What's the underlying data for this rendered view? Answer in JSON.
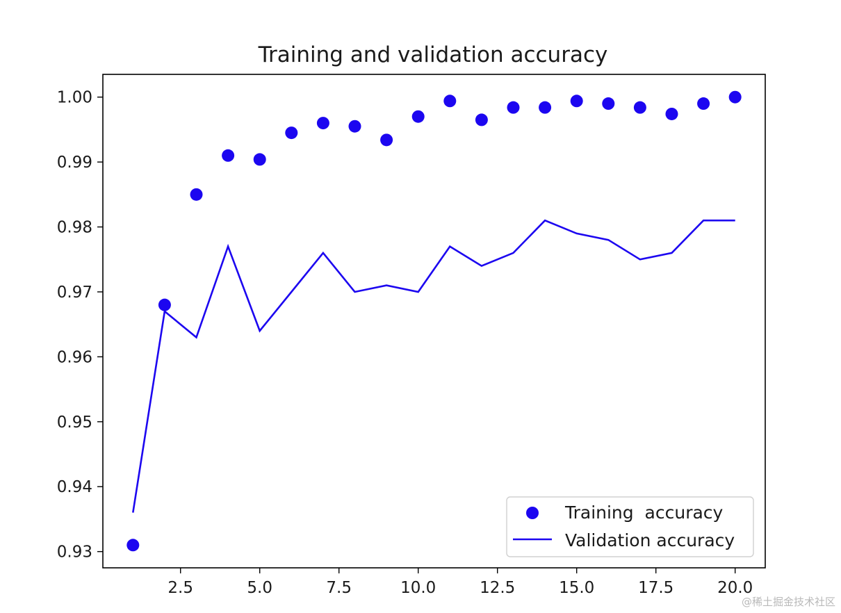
{
  "chart_data": {
    "type": "scatter",
    "title": "Training and validation accuracy",
    "xlabel": "",
    "ylabel": "",
    "xlim": [
      0.05,
      20.95
    ],
    "ylim": [
      0.9275,
      1.0035
    ],
    "x_ticks": [
      2.5,
      5.0,
      7.5,
      10.0,
      12.5,
      15.0,
      17.5,
      20.0
    ],
    "x_tick_labels": [
      "2.5",
      "5.0",
      "7.5",
      "10.0",
      "12.5",
      "15.0",
      "17.5",
      "20.0"
    ],
    "y_ticks": [
      0.93,
      0.94,
      0.95,
      0.96,
      0.97,
      0.98,
      0.99,
      1.0
    ],
    "y_tick_labels": [
      "0.93",
      "0.94",
      "0.95",
      "0.96",
      "0.97",
      "0.98",
      "0.99",
      "1.00"
    ],
    "grid": false,
    "legend_position": "lower-right",
    "x": [
      1,
      2,
      3,
      4,
      5,
      6,
      7,
      8,
      9,
      10,
      11,
      12,
      13,
      14,
      15,
      16,
      17,
      18,
      19,
      20
    ],
    "series": [
      {
        "name": "Training  accuracy",
        "style": "markers",
        "color": "#1c06f0",
        "values": [
          0.931,
          0.968,
          0.985,
          0.991,
          0.9904,
          0.9945,
          0.996,
          0.9955,
          0.9934,
          0.997,
          0.9994,
          0.9965,
          0.9984,
          0.9984,
          0.9994,
          0.999,
          0.9984,
          0.9974,
          0.999,
          1.0
        ]
      },
      {
        "name": "Validation accuracy",
        "style": "line",
        "color": "#1c06f0",
        "values": [
          0.936,
          0.967,
          0.963,
          0.977,
          0.964,
          0.97,
          0.976,
          0.97,
          0.971,
          0.97,
          0.977,
          0.974,
          0.976,
          0.981,
          0.979,
          0.978,
          0.975,
          0.976,
          0.981,
          0.981
        ]
      }
    ]
  },
  "watermark": "@稀土掘金技术社区"
}
